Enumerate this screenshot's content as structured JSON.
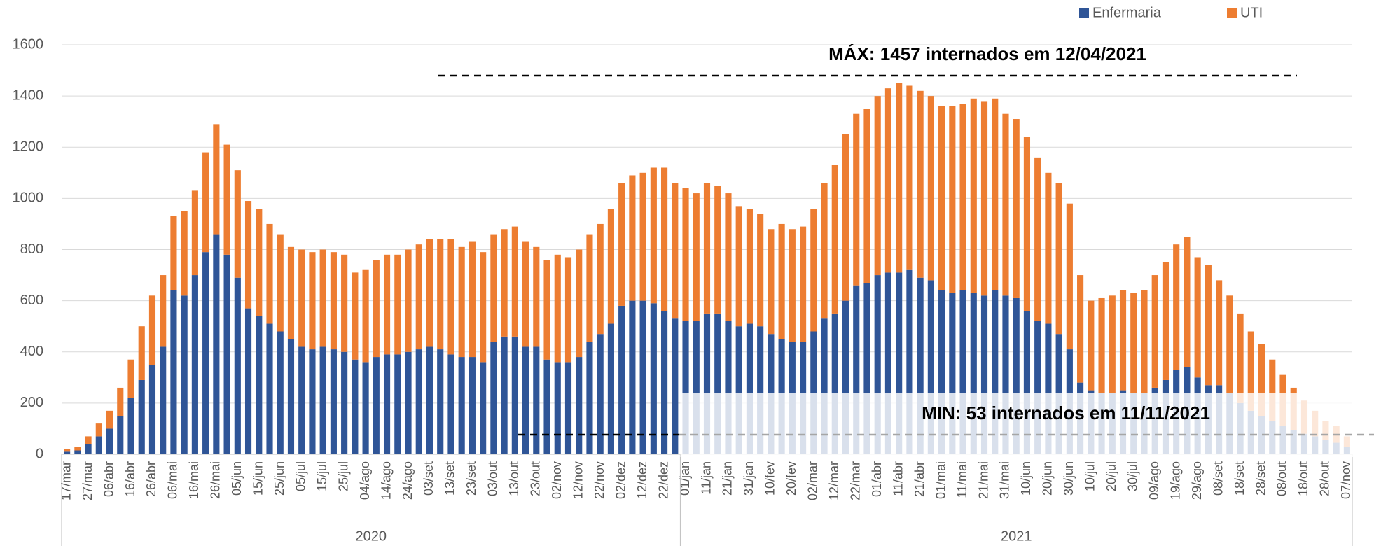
{
  "chart_data": {
    "type": "bar",
    "stacked": true,
    "grid": true,
    "legend": "top-right",
    "categories": [
      "17/mar",
      null,
      "27/mar",
      null,
      "06/abr",
      null,
      "16/abr",
      null,
      "26/abr",
      null,
      "06/mai",
      null,
      "16/mai",
      null,
      "26/mai",
      null,
      "05/jun",
      null,
      "15/jun",
      null,
      "25/jun",
      null,
      "05/jul",
      null,
      "15/jul",
      null,
      "25/jul",
      null,
      "04/ago",
      null,
      "14/ago",
      null,
      "24/ago",
      null,
      "03/set",
      null,
      "13/set",
      null,
      "23/set",
      null,
      "03/out",
      null,
      "13/out",
      null,
      "23/out",
      null,
      "02/nov",
      null,
      "12/nov",
      null,
      "22/nov",
      null,
      "02/dez",
      null,
      "12/dez",
      null,
      "22/dez",
      null,
      "01/jan",
      null,
      "11/jan",
      null,
      "21/jan",
      null,
      "31/jan",
      null,
      "10/fev",
      null,
      "20/fev",
      null,
      "02/mar",
      null,
      "12/mar",
      null,
      "22/mar",
      null,
      "01/abr",
      null,
      "11/abr",
      null,
      "21/abr",
      null,
      "01/mai",
      null,
      "11/mai",
      null,
      "21/mai",
      null,
      "31/mai",
      null,
      "10/jun",
      null,
      "20/jun",
      null,
      "30/jun",
      null,
      "10/jul",
      null,
      "20/jul",
      null,
      "30/jul",
      null,
      "09/ago",
      null,
      "19/ago",
      null,
      "29/ago",
      null,
      "08/set",
      null,
      "18/set",
      null,
      "28/set",
      null,
      "08/out",
      null,
      "18/out",
      null,
      "28/out",
      null,
      "07/nov"
    ],
    "groups": [
      {
        "label": "2020",
        "count": 58
      },
      {
        "label": "2021",
        "count": 63
      }
    ],
    "series": [
      {
        "name": "Enfermaria",
        "color": "#2f5597",
        "values": [
          10,
          15,
          40,
          70,
          100,
          150,
          220,
          290,
          350,
          420,
          640,
          620,
          700,
          790,
          860,
          780,
          690,
          570,
          540,
          510,
          480,
          450,
          420,
          410,
          420,
          410,
          400,
          370,
          360,
          380,
          390,
          390,
          400,
          410,
          420,
          410,
          390,
          380,
          380,
          360,
          440,
          460,
          460,
          420,
          420,
          370,
          360,
          360,
          380,
          440,
          470,
          510,
          580,
          600,
          600,
          590,
          560,
          530,
          520,
          520,
          550,
          550,
          520,
          500,
          510,
          500,
          470,
          450,
          440,
          440,
          480,
          530,
          550,
          600,
          660,
          670,
          700,
          710,
          710,
          720,
          690,
          680,
          640,
          630,
          640,
          630,
          620,
          640,
          620,
          610,
          560,
          520,
          510,
          470,
          410,
          280,
          250,
          240,
          240,
          250,
          240,
          240,
          260,
          290,
          330,
          340,
          300,
          270,
          270,
          240,
          200,
          170,
          150,
          130,
          110,
          95,
          80,
          70,
          55,
          45,
          30
        ]
      },
      {
        "name": "UTI",
        "color": "#ed7d31",
        "values": [
          10,
          15,
          30,
          50,
          70,
          110,
          150,
          210,
          270,
          280,
          290,
          330,
          330,
          390,
          430,
          430,
          420,
          420,
          420,
          390,
          380,
          360,
          380,
          380,
          380,
          380,
          380,
          340,
          360,
          380,
          390,
          390,
          400,
          410,
          420,
          430,
          450,
          430,
          450,
          430,
          420,
          420,
          430,
          410,
          390,
          390,
          420,
          410,
          420,
          420,
          430,
          450,
          480,
          490,
          500,
          530,
          560,
          530,
          520,
          500,
          510,
          500,
          500,
          470,
          450,
          440,
          410,
          450,
          440,
          450,
          480,
          530,
          580,
          650,
          670,
          680,
          700,
          720,
          740,
          720,
          730,
          720,
          720,
          730,
          730,
          760,
          760,
          750,
          710,
          700,
          680,
          640,
          590,
          590,
          570,
          420,
          350,
          370,
          380,
          390,
          390,
          400,
          440,
          460,
          490,
          510,
          470,
          470,
          410,
          380,
          350,
          310,
          280,
          240,
          200,
          165,
          130,
          100,
          75,
          65,
          40
        ]
      }
    ],
    "ylim": [
      0,
      1600
    ],
    "yticks": [
      0,
      200,
      400,
      600,
      800,
      1000,
      1200,
      1400,
      1600
    ],
    "annotations": [
      "MÁX: 1457 internados em 12/04/2021",
      "MIN: 53 internados em 11/11/2021"
    ]
  }
}
